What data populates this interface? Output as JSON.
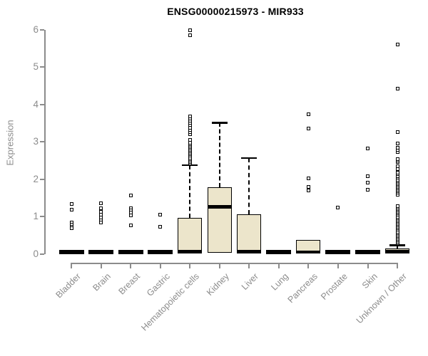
{
  "title": "ENSG00000215973 - MIR933",
  "y_axis": {
    "label": "Expression"
  },
  "colors": {
    "box_fill": "#ECE5CB",
    "box_border": "#000000",
    "median": "#000000",
    "axis": "#8C8C8C",
    "tick_label": "#8C8C8C",
    "title": "#000000",
    "outlier_fill": "#FFFFFF"
  },
  "chart_data": {
    "type": "boxplot",
    "title": "ENSG00000215973 - MIR933",
    "xlabel": "",
    "ylabel": "Expression",
    "ylim": [
      0,
      6
    ],
    "yticks": [
      0,
      1,
      2,
      3,
      4,
      5,
      6
    ],
    "grid": false,
    "legend": "none",
    "categories": [
      "Bladder",
      "Brain",
      "Breast",
      "Gastric",
      "Hematopoietic cells",
      "Kidney",
      "Liver",
      "Lung",
      "Pancreas",
      "Prostate",
      "Skin",
      "Unknown / Other"
    ],
    "series": [
      {
        "name": "Bladder",
        "collapsed": true,
        "q1": 0,
        "median": 0.02,
        "q3": 0,
        "whisker_low": 0,
        "whisker_high": 0,
        "outliers": [
          1.34,
          1.18,
          0.84,
          0.78,
          0.73,
          0.68
        ]
      },
      {
        "name": "Brain",
        "collapsed": true,
        "q1": 0,
        "median": 0.02,
        "q3": 0,
        "whisker_low": 0,
        "whisker_high": 0,
        "outliers": [
          1.35,
          1.22,
          1.13,
          1.05,
          0.97,
          0.9,
          0.83
        ]
      },
      {
        "name": "Breast",
        "collapsed": true,
        "q1": 0,
        "median": 0.02,
        "q3": 0,
        "whisker_low": 0,
        "whisker_high": 0,
        "outliers": [
          1.57,
          1.22,
          1.16,
          1.1,
          1.03,
          0.76
        ]
      },
      {
        "name": "Gastric",
        "collapsed": true,
        "q1": 0,
        "median": 0.02,
        "q3": 0,
        "whisker_low": 0,
        "whisker_high": 0,
        "outliers": [
          1.05,
          0.72
        ]
      },
      {
        "name": "Hematopoietic cells",
        "collapsed": false,
        "q1": 0.02,
        "median": 0.06,
        "q3": 0.97,
        "whisker_low": 0,
        "whisker_high": 2.38,
        "outliers": [
          2.42,
          2.46,
          2.5,
          2.54,
          2.58,
          2.62,
          2.66,
          2.7,
          2.74,
          2.78,
          2.82,
          2.86,
          2.9,
          2.94,
          2.98,
          3.04,
          3.2,
          3.26,
          3.32,
          3.38,
          3.44,
          3.5,
          3.56,
          3.62,
          3.68,
          5.85,
          5.99
        ]
      },
      {
        "name": "Kidney",
        "collapsed": false,
        "q1": 0.03,
        "median": 1.26,
        "q3": 1.79,
        "whisker_low": 0,
        "whisker_high": 3.51,
        "outliers": []
      },
      {
        "name": "Liver",
        "collapsed": false,
        "q1": 0.03,
        "median": 0.06,
        "q3": 1.05,
        "whisker_low": 0,
        "whisker_high": 2.57,
        "outliers": []
      },
      {
        "name": "Lung",
        "collapsed": true,
        "q1": 0,
        "median": 0.02,
        "q3": 0,
        "whisker_low": 0,
        "whisker_high": 0,
        "outliers": []
      },
      {
        "name": "Pancreas",
        "collapsed": false,
        "q1": 0.03,
        "median": 0.05,
        "q3": 0.38,
        "whisker_low": 0,
        "whisker_high": 0.38,
        "outliers": [
          3.74,
          3.35,
          2.01,
          1.8,
          1.7
        ]
      },
      {
        "name": "Prostate",
        "collapsed": true,
        "q1": 0,
        "median": 0.02,
        "q3": 0,
        "whisker_low": 0,
        "whisker_high": 0,
        "outliers": [
          1.24
        ]
      },
      {
        "name": "Skin",
        "collapsed": true,
        "q1": 0,
        "median": 0.02,
        "q3": 0,
        "whisker_low": 0,
        "whisker_high": 0,
        "outliers": [
          2.81,
          2.08,
          1.9,
          1.71
        ]
      },
      {
        "name": "Unknown / Other",
        "collapsed": false,
        "q1": 0.02,
        "median": 0.06,
        "q3": 0.15,
        "whisker_low": 0,
        "whisker_high": 0.23,
        "outliers": [
          0.28,
          0.32,
          0.36,
          0.4,
          0.44,
          0.48,
          0.52,
          0.56,
          0.6,
          0.64,
          0.68,
          0.72,
          0.76,
          0.8,
          0.84,
          0.88,
          0.92,
          0.96,
          1.0,
          1.04,
          1.08,
          1.12,
          1.16,
          1.2,
          1.24,
          1.28,
          1.59,
          1.63,
          1.67,
          1.71,
          1.75,
          1.79,
          1.83,
          1.87,
          1.91,
          1.95,
          1.99,
          2.03,
          2.08,
          2.13,
          2.18,
          2.26,
          2.35,
          2.45,
          2.5,
          2.54,
          2.73,
          2.78,
          2.83,
          2.95,
          3.26,
          4.41,
          5.6
        ]
      }
    ]
  }
}
